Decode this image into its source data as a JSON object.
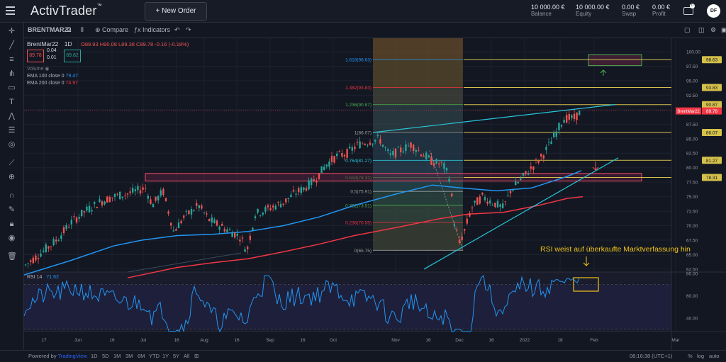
{
  "app": {
    "title": "ActivTrader",
    "tm": "™"
  },
  "header": {
    "new_order": "+ New Order",
    "stats": [
      {
        "value": "10 000.00 €",
        "label": "Balance"
      },
      {
        "value": "10 000.00 €",
        "label": "Equity"
      },
      {
        "value": "0.00 €",
        "label": "Swap"
      },
      {
        "value": "0.00 €",
        "label": "Profit"
      }
    ],
    "wallet_badge": "0",
    "avatar": "DF"
  },
  "chart_toolbar": {
    "symbol": "BRENTMAR22",
    "interval": "D",
    "compare": "Compare",
    "indicators": "Indicators"
  },
  "legend": {
    "symbol": "BrentMar22",
    "interval": "1D",
    "ohlc": "O89.93 H90.08 L89.38 C89.78 -0.16 (-0.18%)",
    "bid": "89.78",
    "spread_top": "0.04",
    "spread_bottom": "0.01",
    "ask": "89.82",
    "volume": "Volume",
    "ema100": "EMA 100 close 0",
    "ema100_value": "79.47",
    "ema200": "EMA 200 close 0",
    "ema200_value": "74.97"
  },
  "rsi": {
    "label": "RSI 14",
    "value": "71.62"
  },
  "annotation": "RSI weist auf überkaufte Marktverfassung hin",
  "price_labels": [
    "100.00",
    "97.50",
    "95.00",
    "92.50",
    "90.00",
    "87.50",
    "85.00",
    "82.50",
    "80.00",
    "77.50",
    "75.00",
    "72.50",
    "70.00",
    "67.50",
    "65.00",
    "62.50"
  ],
  "price_tags": [
    {
      "text": "98.63",
      "price": 98.63,
      "color": "#d4c04a"
    },
    {
      "text": "93.83",
      "price": 93.83,
      "color": "#d4c04a"
    },
    {
      "text": "90.87",
      "price": 90.87,
      "color": "#d4c04a"
    },
    {
      "text": "89.78",
      "price": 89.78,
      "color": "#f23645"
    },
    {
      "text": "86.07",
      "price": 86.07,
      "color": "#d4c04a"
    },
    {
      "text": "81.27",
      "price": 81.27,
      "color": "#d4c04a"
    },
    {
      "text": "78.31",
      "price": 78.31,
      "color": "#d4c04a"
    }
  ],
  "symbol_tag": "BrentMar22",
  "fib_levels": [
    {
      "label": "1.618(98.63)",
      "price": 98.63,
      "color": "#2196f3"
    },
    {
      "label": "1.382(93.83)",
      "price": 93.83,
      "color": "#f23645"
    },
    {
      "label": "1.236(90.87)",
      "price": 90.87,
      "color": "#4caf50"
    },
    {
      "label": "1(86.07)",
      "price": 86.07,
      "color": "#9e9e9e"
    },
    {
      "label": "0.764(81.27)",
      "price": 81.27,
      "color": "#26c6da"
    },
    {
      "label": "0.618(78.31)",
      "price": 78.31,
      "color": "#4caf50"
    },
    {
      "label": "0.5(75.91)",
      "price": 75.91,
      "color": "#9e9e9e"
    },
    {
      "label": "0.382(73.51)",
      "price": 73.51,
      "color": "#4caf50"
    },
    {
      "label": "0.236(70.55)",
      "price": 70.55,
      "color": "#f23645"
    },
    {
      "label": "0(65.75)",
      "price": 65.75,
      "color": "#9e9e9e"
    }
  ],
  "rsi_labels": [
    "80.00",
    "60.00",
    "40.00"
  ],
  "time_labels": [
    "17",
    "Jun",
    "16",
    "Jul",
    "16",
    "Aug",
    "16",
    "Sep",
    "16",
    "Oct",
    "Nov",
    "16",
    "Dec",
    "16",
    "2022",
    "18",
    "Feb",
    "Mar"
  ],
  "bottom": {
    "powered": "Powered by ",
    "tv": "TradingView",
    "ranges": [
      "1D",
      "5D",
      "1M",
      "3M",
      "6M",
      "YTD",
      "1Y",
      "5Y",
      "All"
    ],
    "time": "08:16:38 (UTC+1)",
    "pct": "%",
    "log": "log",
    "auto": "auto"
  },
  "colors": {
    "bull": "#26a69a",
    "bear": "#ef5350",
    "ema100": "#2196f3",
    "ema200": "#f23645",
    "rsi": "#2196f3",
    "trend": "#26c6da",
    "box": "#e91e63",
    "fib_zone": "#d4c04a"
  }
}
